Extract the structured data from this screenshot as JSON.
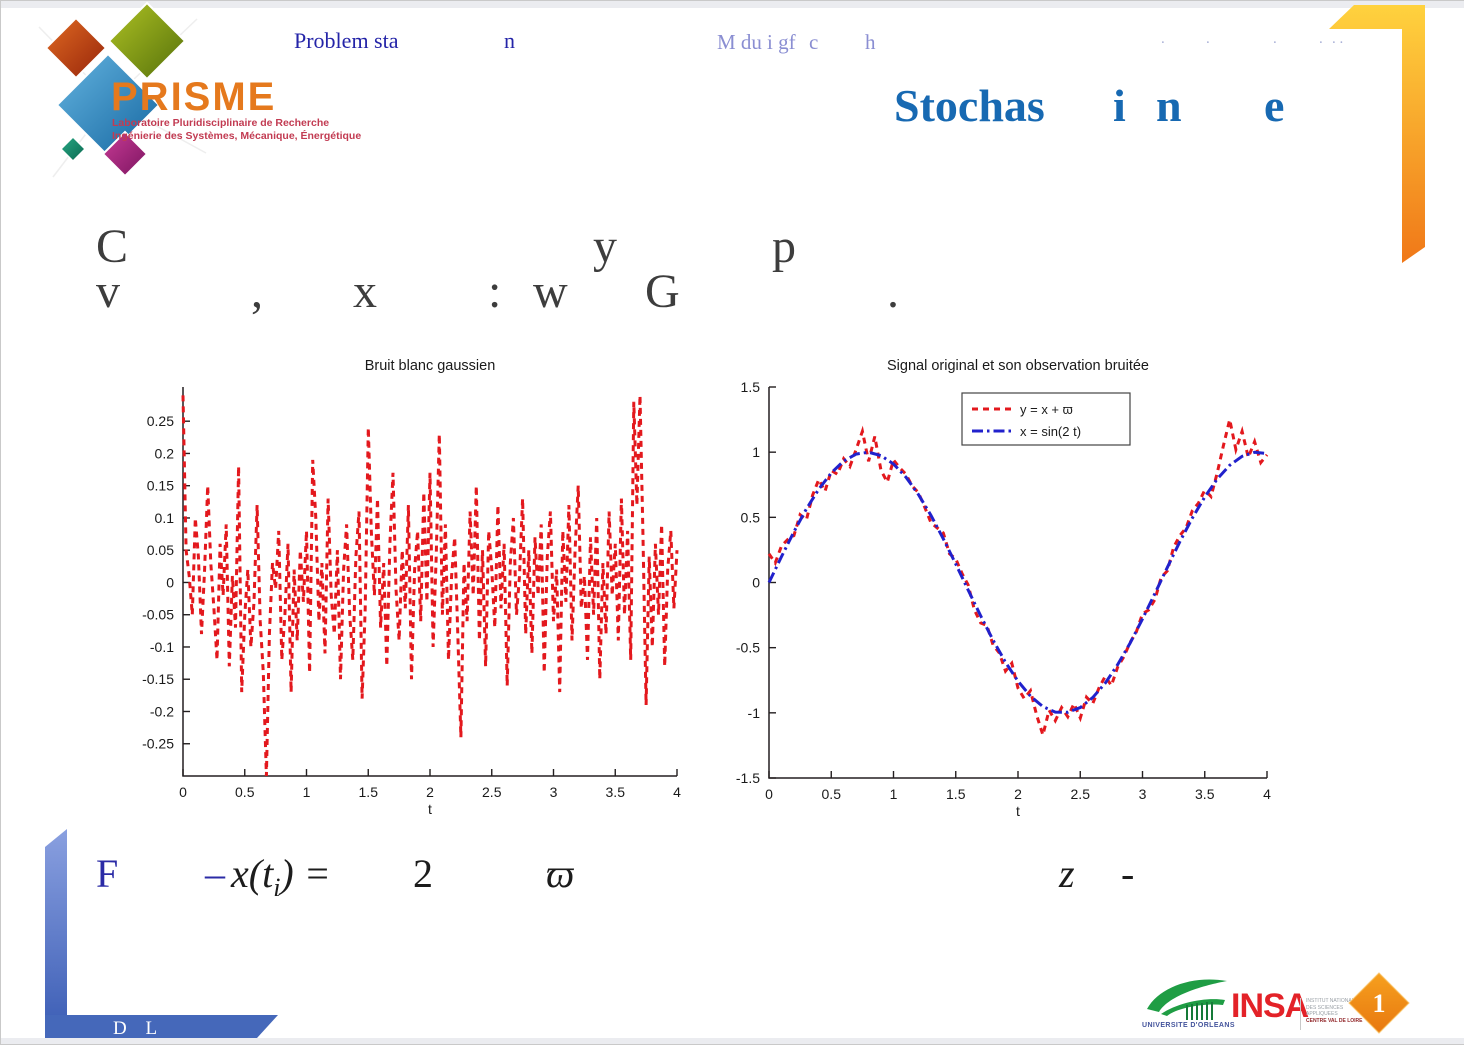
{
  "slide": {
    "header": {
      "left_fragments": [
        "Problem sta",
        "n"
      ],
      "right_fragments": [
        "M du",
        "i gf",
        "c",
        "h"
      ],
      "faint_marks": [
        ".",
        ".",
        ".",
        ".",
        ". ."
      ]
    },
    "title_fragments": [
      "Stochas",
      "i",
      "n",
      "e"
    ],
    "body_line1": [
      "C",
      "y",
      "p"
    ],
    "body_line2": [
      "v",
      ",",
      "x",
      ":",
      "w",
      "G",
      "."
    ],
    "formula": {
      "f": "F",
      "minus": "–",
      "x_open": "x(t",
      "x_sub": "i",
      "x_close": ") =",
      "two": "2",
      "varpi": "ϖ",
      "z": "z",
      "dash": "-"
    },
    "footer": {
      "initials": "D L",
      "page_number": "1"
    }
  },
  "prisme_logo": {
    "name": "PRISME",
    "subtitle1": "Laboratoire Pluridisciplinaire de Recherche",
    "subtitle2": "Ingénierie des Systèmes, Mécanique, Énergétique"
  },
  "partner_logos": {
    "university": "UNIVERSITE D'ORLEANS",
    "insa": "INSA",
    "insa_lines": [
      "INSTITUT NATIONAL",
      "DES SCIENCES",
      "APPLIQUEES",
      "CENTRE VAL DE LOIRE"
    ]
  },
  "colors": {
    "accent_blue_title": "#1769b2",
    "header_navy": "#2424a8",
    "series_red": "#e3181d",
    "series_blue": "#2121cc",
    "ribbon_orange_top": "#ffd23e",
    "ribbon_orange_bottom": "#f07818",
    "ribbon_blue_top": "#8aa0e0",
    "ribbon_blue_bottom": "#3a5cb4"
  },
  "chart_data": [
    {
      "type": "line",
      "title": "Bruit blanc gaussien",
      "xlabel": "t",
      "ylabel": "",
      "xlim": [
        0,
        4
      ],
      "ylim": [
        -0.3,
        0.303
      ],
      "xticks": [
        0,
        0.5,
        1,
        1.5,
        2,
        2.5,
        3,
        3.5,
        4
      ],
      "yticks": [
        0.25,
        0.2,
        0.15,
        0.1,
        0.05,
        0,
        -0.05,
        -0.1,
        -0.15,
        -0.2,
        -0.25
      ],
      "grid": false,
      "legend": null,
      "series": [
        {
          "name": "bruit blanc gaussien",
          "color": "#e3181d",
          "line_style": "dashed",
          "t_start": 0,
          "t_step": 0.025,
          "values": [
            0.29,
            0.05,
            0.01,
            -0.05,
            0.1,
            0.04,
            -0.08,
            0.02,
            0.15,
            0.03,
            -0.04,
            -0.12,
            0.06,
            -0.02,
            0.09,
            -0.13,
            0.01,
            -0.07,
            0.18,
            -0.17,
            -0.05,
            0.02,
            -0.1,
            -0.03,
            0.12,
            -0.06,
            -0.14,
            -0.33,
            -0.08,
            0.03,
            -0.01,
            0.08,
            -0.12,
            -0.05,
            0.06,
            -0.17,
            0.02,
            -0.09,
            0.05,
            -0.03,
            0.08,
            -0.14,
            0.19,
            0.1,
            -0.06,
            0.03,
            -0.11,
            0.13,
            -0.02,
            -0.08,
            0.05,
            -0.15,
            0.02,
            0.09,
            -0.05,
            -0.12,
            0.04,
            0.11,
            -0.18,
            -0.04,
            0.24,
            0.08,
            -0.02,
            0.13,
            -0.07,
            0.03,
            -0.13,
            0.06,
            0.17,
            -0.01,
            -0.09,
            0.05,
            -0.04,
            0.12,
            -0.15,
            0.02,
            0.08,
            -0.06,
            0.14,
            -0.03,
            0.17,
            -0.1,
            0.04,
            0.23,
            -0.05,
            0.09,
            -0.12,
            0.01,
            0.07,
            -0.08,
            -0.24,
            0.03,
            -0.06,
            0.11,
            -0.02,
            0.15,
            -0.09,
            0.05,
            -0.13,
            0.08,
            0.02,
            -0.07,
            0.12,
            -0.04,
            0.06,
            -0.16,
            0.03,
            0.1,
            -0.05,
            0.01,
            0.13,
            -0.08,
            0.05,
            -0.11,
            0.07,
            -0.02,
            0.09,
            -0.14,
            0.04,
            0.11,
            -0.06,
            0.02,
            -0.17,
            0.08,
            -0.03,
            0.12,
            -0.09,
            0.05,
            0.15,
            -0.04,
            0.01,
            -0.12,
            0.07,
            -0.05,
            0.1,
            -0.15,
            0.03,
            -0.08,
            0.11,
            -0.02,
            0.06,
            -0.09,
            0.13,
            -0.05,
            0.08,
            -0.12,
            0.28,
            0.12,
            0.29,
            0.07,
            -0.19,
            0.04,
            -0.1,
            0.06,
            -0.05,
            0.09,
            -0.13,
            0.02,
            0.08,
            -0.04,
            0.05
          ]
        }
      ]
    },
    {
      "type": "line",
      "title": "Signal original et son observation bruitée",
      "xlabel": "t",
      "ylabel": "",
      "xlim": [
        0,
        4
      ],
      "ylim": [
        -1.5,
        1.5
      ],
      "xticks": [
        0,
        0.5,
        1,
        1.5,
        2,
        2.5,
        3,
        3.5,
        4
      ],
      "yticks": [
        1.5,
        1,
        0.5,
        0,
        -0.5,
        -1,
        -1.5
      ],
      "grid": false,
      "legend": {
        "position": "upper-center",
        "entries": [
          {
            "label": "y  = x + ϖ",
            "color": "#e3181d",
            "line_style": "dashed"
          },
          {
            "label": "x = sin(2 t)",
            "color": "#2121cc",
            "line_style": "dashdot"
          }
        ]
      },
      "series": [
        {
          "name": "y = x + ϖ",
          "color": "#e3181d",
          "line_style": "dashed",
          "t_start": 0,
          "t_step": 0.05,
          "values": [
            0.22,
            0.15,
            0.28,
            0.33,
            0.36,
            0.52,
            0.48,
            0.67,
            0.79,
            0.7,
            0.86,
            0.83,
            0.95,
            0.89,
            1.02,
            1.16,
            0.93,
            1.12,
            0.86,
            0.77,
            0.94,
            0.88,
            0.83,
            0.74,
            0.69,
            0.58,
            0.46,
            0.42,
            0.38,
            0.22,
            0.18,
            0.07,
            -0.02,
            -0.21,
            -0.31,
            -0.33,
            -0.48,
            -0.54,
            -0.68,
            -0.62,
            -0.81,
            -0.89,
            -0.83,
            -1.02,
            -1.17,
            -0.98,
            -1.06,
            -0.96,
            -1.03,
            -0.93,
            -1.04,
            -0.88,
            -0.93,
            -0.81,
            -0.72,
            -0.79,
            -0.65,
            -0.57,
            -0.46,
            -0.38,
            -0.24,
            -0.21,
            -0.13,
            0.04,
            0.09,
            0.27,
            0.36,
            0.42,
            0.55,
            0.61,
            0.71,
            0.66,
            0.84,
            1.05,
            1.25,
            1.02,
            1.16,
            0.96,
            1.08,
            0.92,
            0.98
          ]
        },
        {
          "name": "x = sin(2 t)",
          "color": "#2121cc",
          "line_style": "dashdot",
          "t_start": 0,
          "t_step": 0.1,
          "values": [
            0,
            0.199,
            0.389,
            0.565,
            0.717,
            0.841,
            0.932,
            0.985,
            1.0,
            0.974,
            0.909,
            0.808,
            0.675,
            0.516,
            0.335,
            0.141,
            -0.058,
            -0.256,
            -0.443,
            -0.612,
            -0.757,
            -0.872,
            -0.952,
            -0.994,
            -0.996,
            -0.959,
            -0.883,
            -0.773,
            -0.631,
            -0.465,
            -0.279,
            -0.083,
            0.117,
            0.312,
            0.494,
            0.657,
            0.794,
            0.899,
            0.968,
            0.999,
            0.989
          ]
        }
      ]
    }
  ]
}
